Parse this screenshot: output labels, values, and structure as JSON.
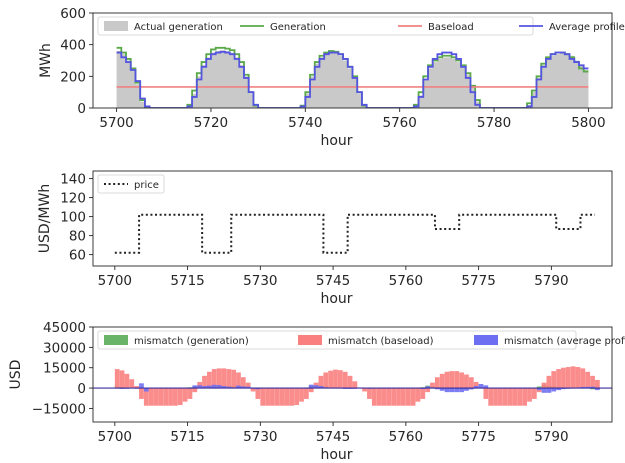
{
  "chart_data": [
    {
      "type": "area",
      "xlabel": "hour",
      "ylabel": "MWh",
      "xlim": [
        5695,
        5805
      ],
      "ylim": [
        0,
        600
      ],
      "xticks": [
        5700,
        5720,
        5740,
        5760,
        5780,
        5800
      ],
      "xtick_labels": [
        "5700",
        "5720",
        "5740",
        "5760",
        "5780",
        "5800"
      ],
      "yticks": [
        0,
        200,
        400,
        600
      ],
      "ytick_labels": [
        "0",
        "200",
        "400",
        "600"
      ],
      "legend": {
        "position": "top",
        "ncol": 4
      },
      "series": [
        {
          "name": "Actual generation",
          "kind": "fill",
          "color": "#c9c9c9",
          "x": [
            5700,
            5701,
            5702,
            5703,
            5704,
            5705,
            5706,
            5707,
            5708,
            5709,
            5710,
            5711,
            5712,
            5713,
            5714,
            5715,
            5716,
            5717,
            5718,
            5719,
            5720,
            5721,
            5722,
            5723,
            5724,
            5725,
            5726,
            5727,
            5728,
            5729,
            5730,
            5731,
            5732,
            5733,
            5734,
            5735,
            5736,
            5737,
            5738,
            5739,
            5740,
            5741,
            5742,
            5743,
            5744,
            5745,
            5746,
            5747,
            5748,
            5749,
            5750,
            5751,
            5752,
            5753,
            5754,
            5755,
            5756,
            5757,
            5758,
            5759,
            5760,
            5761,
            5762,
            5763,
            5764,
            5765,
            5766,
            5767,
            5768,
            5769,
            5770,
            5771,
            5772,
            5773,
            5774,
            5775,
            5776,
            5777,
            5778,
            5779,
            5780,
            5781,
            5782,
            5783,
            5784,
            5785,
            5786,
            5787,
            5788,
            5789,
            5790,
            5791,
            5792,
            5793,
            5794,
            5795,
            5796,
            5797,
            5798,
            5799
          ],
          "y": [
            360,
            340,
            300,
            240,
            150,
            40,
            0,
            0,
            0,
            0,
            0,
            0,
            0,
            0,
            0,
            10,
            90,
            200,
            270,
            320,
            350,
            360,
            365,
            360,
            350,
            320,
            270,
            200,
            90,
            10,
            0,
            0,
            0,
            0,
            0,
            0,
            0,
            0,
            0,
            10,
            90,
            200,
            280,
            320,
            340,
            350,
            345,
            330,
            300,
            250,
            200,
            90,
            10,
            0,
            0,
            0,
            0,
            0,
            0,
            0,
            0,
            0,
            0,
            10,
            80,
            180,
            250,
            290,
            310,
            320,
            320,
            310,
            290,
            260,
            210,
            130,
            40,
            0,
            0,
            0,
            0,
            0,
            0,
            0,
            0,
            0,
            0,
            20,
            100,
            190,
            270,
            310,
            330,
            340,
            350,
            340,
            330,
            300,
            270,
            240
          ]
        },
        {
          "name": "Generation",
          "kind": "step",
          "color": "#5aaa4a",
          "x": [
            5700,
            5701,
            5702,
            5703,
            5704,
            5705,
            5706,
            5707,
            5708,
            5709,
            5710,
            5711,
            5712,
            5713,
            5714,
            5715,
            5716,
            5717,
            5718,
            5719,
            5720,
            5721,
            5722,
            5723,
            5724,
            5725,
            5726,
            5727,
            5728,
            5729,
            5730,
            5731,
            5732,
            5733,
            5734,
            5735,
            5736,
            5737,
            5738,
            5739,
            5740,
            5741,
            5742,
            5743,
            5744,
            5745,
            5746,
            5747,
            5748,
            5749,
            5750,
            5751,
            5752,
            5753,
            5754,
            5755,
            5756,
            5757,
            5758,
            5759,
            5760,
            5761,
            5762,
            5763,
            5764,
            5765,
            5766,
            5767,
            5768,
            5769,
            5770,
            5771,
            5772,
            5773,
            5774,
            5775,
            5776,
            5777,
            5778,
            5779,
            5780,
            5781,
            5782,
            5783,
            5784,
            5785,
            5786,
            5787,
            5788,
            5789,
            5790,
            5791,
            5792,
            5793,
            5794,
            5795,
            5796,
            5797,
            5798,
            5799
          ],
          "y": [
            380,
            350,
            310,
            250,
            160,
            50,
            0,
            0,
            0,
            0,
            0,
            0,
            0,
            0,
            0,
            20,
            110,
            220,
            290,
            340,
            370,
            380,
            380,
            375,
            365,
            340,
            290,
            210,
            100,
            15,
            0,
            0,
            0,
            0,
            0,
            0,
            0,
            0,
            0,
            15,
            100,
            210,
            290,
            330,
            350,
            360,
            355,
            340,
            310,
            260,
            200,
            100,
            15,
            0,
            0,
            0,
            0,
            0,
            0,
            0,
            0,
            0,
            0,
            20,
            100,
            200,
            270,
            300,
            320,
            330,
            330,
            320,
            300,
            270,
            220,
            140,
            50,
            0,
            0,
            0,
            0,
            0,
            0,
            0,
            0,
            0,
            0,
            30,
            110,
            200,
            280,
            320,
            340,
            350,
            350,
            340,
            320,
            290,
            250,
            230
          ]
        },
        {
          "name": "Baseload",
          "kind": "line",
          "color": "#f08080",
          "x": [
            5700,
            5800
          ],
          "y": [
            133,
            133
          ]
        },
        {
          "name": "Average profile",
          "kind": "step",
          "color": "#5555e0",
          "x": [
            5700,
            5701,
            5702,
            5703,
            5704,
            5705,
            5706,
            5707,
            5708,
            5709,
            5710,
            5711,
            5712,
            5713,
            5714,
            5715,
            5716,
            5717,
            5718,
            5719,
            5720,
            5721,
            5722,
            5723,
            5724,
            5725,
            5726,
            5727,
            5728,
            5729,
            5730,
            5731,
            5732,
            5733,
            5734,
            5735,
            5736,
            5737,
            5738,
            5739,
            5740,
            5741,
            5742,
            5743,
            5744,
            5745,
            5746,
            5747,
            5748,
            5749,
            5750,
            5751,
            5752,
            5753,
            5754,
            5755,
            5756,
            5757,
            5758,
            5759,
            5760,
            5761,
            5762,
            5763,
            5764,
            5765,
            5766,
            5767,
            5768,
            5769,
            5770,
            5771,
            5772,
            5773,
            5774,
            5775,
            5776,
            5777,
            5778,
            5779,
            5780,
            5781,
            5782,
            5783,
            5784,
            5785,
            5786,
            5787,
            5788,
            5789,
            5790,
            5791,
            5792,
            5793,
            5794,
            5795,
            5796,
            5797,
            5798,
            5799
          ],
          "y": [
            350,
            320,
            290,
            240,
            170,
            60,
            10,
            0,
            0,
            0,
            0,
            0,
            0,
            0,
            0,
            10,
            70,
            180,
            260,
            310,
            340,
            350,
            355,
            350,
            340,
            310,
            260,
            190,
            100,
            20,
            0,
            0,
            0,
            0,
            0,
            0,
            0,
            0,
            0,
            10,
            70,
            180,
            260,
            310,
            340,
            350,
            350,
            340,
            310,
            260,
            190,
            100,
            20,
            0,
            0,
            0,
            0,
            0,
            0,
            0,
            0,
            0,
            0,
            10,
            70,
            180,
            260,
            310,
            340,
            350,
            350,
            340,
            310,
            260,
            190,
            100,
            20,
            0,
            0,
            0,
            0,
            0,
            0,
            0,
            0,
            0,
            0,
            10,
            70,
            180,
            260,
            310,
            340,
            350,
            350,
            340,
            310,
            290,
            270,
            250
          ]
        }
      ]
    },
    {
      "type": "line",
      "xlabel": "hour",
      "ylabel": "USD/MWh",
      "xlim": [
        5695.5,
        5802.5
      ],
      "ylim": [
        48,
        148
      ],
      "xticks": [
        5700,
        5715,
        5730,
        5745,
        5760,
        5775,
        5790
      ],
      "xtick_labels": [
        "5700",
        "5715",
        "5730",
        "5745",
        "5760",
        "5775",
        "5790"
      ],
      "yticks": [
        60,
        80,
        100,
        120,
        140
      ],
      "ytick_labels": [
        "60",
        "80",
        "100",
        "120",
        "140"
      ],
      "legend": {
        "position": "top-left"
      },
      "series": [
        {
          "name": "price",
          "kind": "dotted-step",
          "color": "#222222",
          "x": [
            5700,
            5705,
            5705,
            5718,
            5718,
            5724,
            5724,
            5743,
            5743,
            5748,
            5748,
            5766,
            5766,
            5771,
            5771,
            5791,
            5791,
            5796,
            5796,
            5799
          ],
          "y": [
            62,
            62,
            102,
            102,
            62,
            62,
            102,
            102,
            62,
            62,
            102,
            102,
            87,
            87,
            102,
            102,
            87,
            87,
            102,
            102
          ]
        }
      ]
    },
    {
      "type": "bar",
      "xlabel": "hour",
      "ylabel": "USD",
      "xlim": [
        5695.5,
        5802.5
      ],
      "ylim": [
        -25000,
        45000
      ],
      "xticks": [
        5700,
        5715,
        5730,
        5745,
        5760,
        5775,
        5790
      ],
      "xtick_labels": [
        "5700",
        "5715",
        "5730",
        "5745",
        "5760",
        "5775",
        "5790"
      ],
      "yticks": [
        -15000,
        0,
        15000,
        30000,
        45000
      ],
      "ytick_labels": [
        "−15000",
        "0",
        "15000",
        "30000",
        "45000"
      ],
      "legend": {
        "position": "top",
        "ncol": 3
      },
      "series": [
        {
          "name": "mismatch (generation)",
          "color": "#6ab46a",
          "x0": 5700,
          "values": [
            1200,
            600,
            400,
            500,
            300,
            400,
            0,
            0,
            0,
            0,
            0,
            0,
            0,
            0,
            0,
            600,
            1200,
            1800,
            1200,
            1500,
            1800,
            1500,
            1500,
            1500,
            1500,
            1200,
            1300,
            1100,
            300,
            300,
            0,
            0,
            0,
            0,
            0,
            0,
            0,
            0,
            0,
            300,
            1800,
            2100,
            1800,
            1200,
            600,
            600,
            300,
            0,
            0,
            0,
            -100,
            0,
            -100,
            0,
            0,
            0,
            0,
            0,
            0,
            0,
            0,
            0,
            0,
            600,
            1800,
            1200,
            600,
            -300,
            -600,
            -600,
            -600,
            -900,
            -900,
            -600,
            -300,
            300,
            600,
            0,
            0,
            0,
            0,
            0,
            0,
            0,
            0,
            0,
            0,
            1200,
            2400,
            1500,
            1200,
            600,
            0,
            0,
            0,
            0,
            0,
            -300,
            -900,
            -600
          ]
        },
        {
          "name": "mismatch (baseload)",
          "color": "#fa8080",
          "x0": 5700,
          "values": [
            14000,
            13000,
            10500,
            6500,
            1500,
            -8000,
            -13000,
            -13000,
            -13000,
            -13000,
            -13000,
            -13000,
            -13000,
            -12500,
            -10000,
            -8000,
            -3000,
            4500,
            9000,
            12000,
            14000,
            14500,
            14500,
            14000,
            13500,
            11500,
            8000,
            4000,
            -2500,
            -8000,
            -13000,
            -13000,
            -13000,
            -13000,
            -13000,
            -13000,
            -13000,
            -12500,
            -10000,
            -8000,
            -3000,
            4000,
            9000,
            11500,
            12800,
            13600,
            13200,
            12000,
            9000,
            5000,
            500,
            -2500,
            -8000,
            -13000,
            -13000,
            -13000,
            -13000,
            -13000,
            -13000,
            -13000,
            -13000,
            -13000,
            -10000,
            -8000,
            -3000,
            4000,
            8000,
            10500,
            12000,
            12500,
            12500,
            11500,
            10000,
            8000,
            4500,
            0,
            -8000,
            -13000,
            -13000,
            -13000,
            -13000,
            -13000,
            -13000,
            -13000,
            -13000,
            -10000,
            -8000,
            -3000,
            4000,
            9000,
            12500,
            14000,
            15000,
            15500,
            16000,
            15500,
            14500,
            12000,
            9000,
            6000
          ]
        },
        {
          "name": "mismatch (average profile)",
          "color": "#6e6ef2",
          "x0": 5700,
          "values": [
            -400,
            -600,
            -500,
            0,
            -500,
            3500,
            -2500,
            0,
            0,
            0,
            0,
            0,
            0,
            0,
            0,
            -400,
            2000,
            2100,
            1500,
            1800,
            2400,
            2200,
            1500,
            1000,
            600,
            1800,
            1200,
            1000,
            -500,
            -800,
            0,
            0,
            0,
            0,
            0,
            0,
            0,
            0,
            0,
            -400,
            2500,
            2100,
            1500,
            600,
            0,
            300,
            -200,
            -600,
            -600,
            -500,
            0,
            -300,
            -500,
            0,
            0,
            0,
            0,
            0,
            0,
            0,
            0,
            0,
            0,
            -700,
            1300,
            600,
            -900,
            -2000,
            -3000,
            -3000,
            -3000,
            -3000,
            -2000,
            -1000,
            1500,
            3000,
            2000,
            0,
            0,
            0,
            0,
            0,
            0,
            0,
            0,
            0,
            0,
            -1500,
            -3500,
            -3500,
            -2500,
            -1500,
            -800,
            -500,
            0,
            500,
            800,
            900,
            1000,
            -1500
          ]
        }
      ]
    }
  ]
}
